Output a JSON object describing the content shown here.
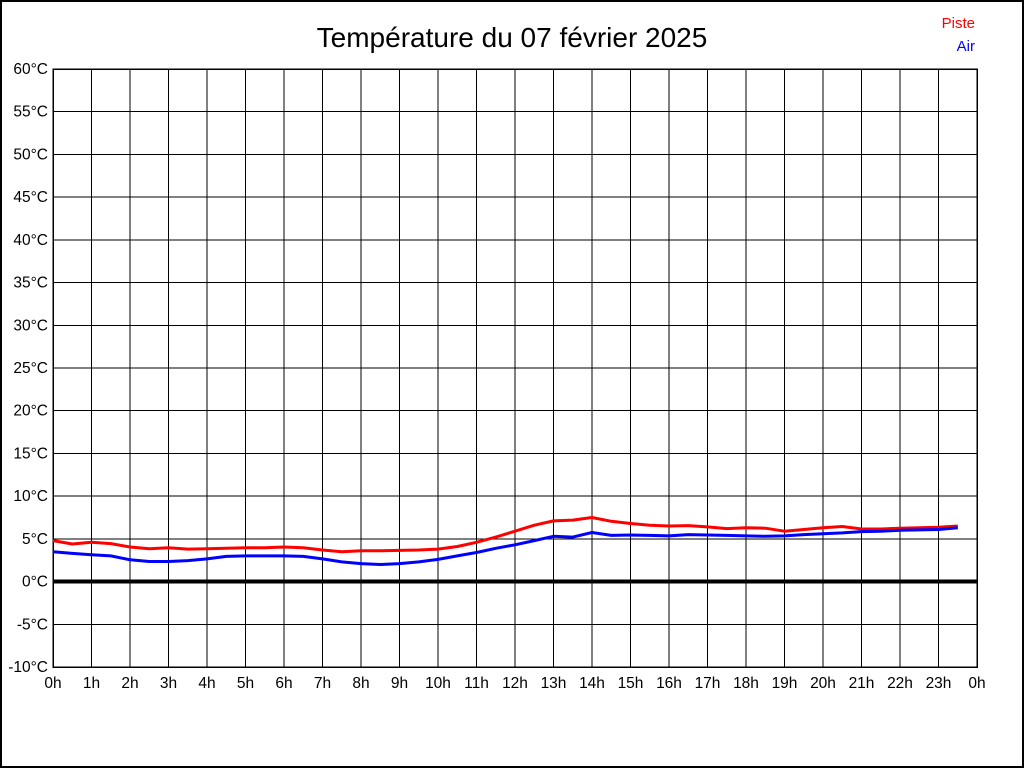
{
  "header": {
    "title": "Température du 07 février 2025"
  },
  "legend": [
    {
      "label": "Piste",
      "color": "#ff0000"
    },
    {
      "label": "Air",
      "color": "#0000ff"
    }
  ],
  "chart_data": {
    "type": "line",
    "title": "Température du 07 février 2025",
    "xlabel": "",
    "ylabel": "",
    "xlim": [
      0,
      24
    ],
    "ylim": [
      -10,
      60
    ],
    "y_step_deg": 5,
    "grid": "on",
    "legend_position": "top-right",
    "zero_line": true,
    "x_tick_labels": [
      "0h",
      "1h",
      "2h",
      "3h",
      "4h",
      "5h",
      "6h",
      "7h",
      "8h",
      "9h",
      "10h",
      "11h",
      "12h",
      "13h",
      "14h",
      "15h",
      "16h",
      "17h",
      "18h",
      "19h",
      "20h",
      "21h",
      "22h",
      "23h",
      "0h"
    ],
    "y_tick_labels": [
      "60°C",
      "55°C",
      "50°C",
      "45°C",
      "40°C",
      "35°C",
      "30°C",
      "25°C",
      "20°C",
      "15°C",
      "10°C",
      "5°C",
      "0°C",
      "-5°C",
      "-10°C"
    ],
    "x_hours": [
      0,
      0.5,
      1,
      1.5,
      2,
      2.5,
      3,
      3.5,
      4,
      4.5,
      5,
      5.5,
      6,
      6.5,
      7,
      7.5,
      8,
      8.5,
      9,
      9.5,
      10,
      10.5,
      11,
      11.5,
      12,
      12.5,
      13,
      13.5,
      14,
      14.5,
      15,
      15.5,
      16,
      16.5,
      17,
      17.5,
      18,
      18.5,
      19,
      19.5,
      20,
      20.5,
      21,
      21.5,
      22,
      22.5,
      23,
      23.5
    ],
    "series": [
      {
        "name": "Piste",
        "color": "#ff0000",
        "values": [
          4.8,
          4.4,
          4.6,
          4.45,
          4.05,
          3.85,
          3.95,
          3.8,
          3.85,
          3.9,
          3.95,
          3.95,
          4.05,
          3.95,
          3.7,
          3.5,
          3.6,
          3.6,
          3.65,
          3.7,
          3.8,
          4.1,
          4.6,
          5.2,
          5.9,
          6.6,
          7.1,
          7.2,
          7.5,
          7.05,
          6.8,
          6.6,
          6.5,
          6.55,
          6.4,
          6.2,
          6.3,
          6.25,
          5.9,
          6.1,
          6.3,
          6.45,
          6.15,
          6.15,
          6.25,
          6.3,
          6.35,
          6.5
        ]
      },
      {
        "name": "Air",
        "color": "#0000ff",
        "values": [
          3.5,
          3.3,
          3.15,
          3.0,
          2.55,
          2.35,
          2.35,
          2.45,
          2.65,
          2.95,
          3.0,
          3.0,
          3.0,
          2.95,
          2.65,
          2.3,
          2.1,
          2.0,
          2.1,
          2.3,
          2.6,
          3.0,
          3.4,
          3.9,
          4.3,
          4.8,
          5.3,
          5.2,
          5.75,
          5.4,
          5.45,
          5.4,
          5.35,
          5.5,
          5.45,
          5.4,
          5.35,
          5.3,
          5.35,
          5.5,
          5.6,
          5.7,
          5.85,
          5.9,
          6.0,
          6.05,
          6.1,
          6.3
        ]
      }
    ]
  }
}
